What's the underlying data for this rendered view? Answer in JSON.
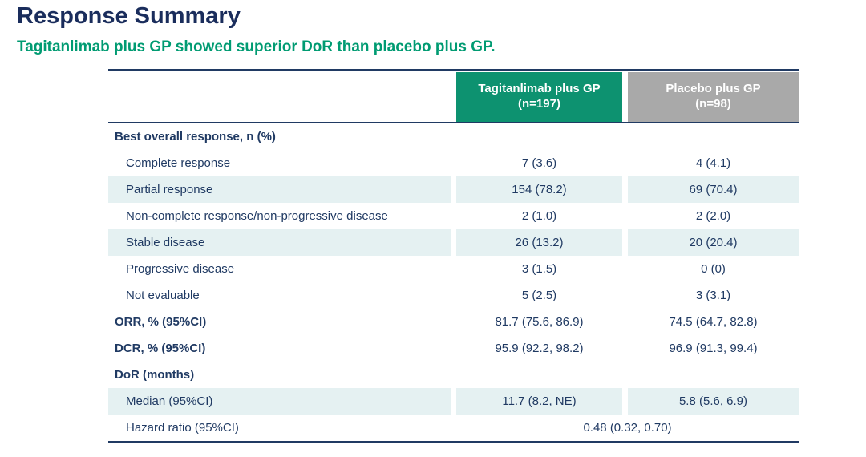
{
  "page": {
    "title": "Response Summary",
    "subtitle": "Tagitanlimab plus GP showed superior DoR than placebo plus GP."
  },
  "colors": {
    "title_navy": "#1a2d5c",
    "text_navy": "#203a63",
    "rule_navy": "#203a63",
    "accent_green": "#009b72",
    "header_green_bg": "#0d9270",
    "header_gray_bg": "#a9a9a9",
    "row_shade": "#e5f1f2",
    "header_text": "#ffffff"
  },
  "table": {
    "columns": [
      {
        "id": "label",
        "header_line1": "",
        "header_line2": ""
      },
      {
        "id": "tagitanlimab",
        "header_line1": "Tagitanlimab plus GP",
        "header_line2": "(n=197)"
      },
      {
        "id": "placebo",
        "header_line1": "Placebo plus GP",
        "header_line2": "(n=98)"
      }
    ],
    "rows": [
      {
        "label": "Best overall response, n (%)",
        "values": [
          "",
          ""
        ],
        "bold": true,
        "indent": 0,
        "shaded": false
      },
      {
        "label": "Complete response",
        "values": [
          "7 (3.6)",
          "4 (4.1)"
        ],
        "bold": false,
        "indent": 1,
        "shaded": false
      },
      {
        "label": "Partial response",
        "values": [
          "154 (78.2)",
          "69 (70.4)"
        ],
        "bold": false,
        "indent": 1,
        "shaded": true
      },
      {
        "label": "Non-complete response/non-progressive disease",
        "values": [
          "2 (1.0)",
          "2 (2.0)"
        ],
        "bold": false,
        "indent": 1,
        "shaded": false
      },
      {
        "label": "Stable disease",
        "values": [
          "26 (13.2)",
          "20 (20.4)"
        ],
        "bold": false,
        "indent": 1,
        "shaded": true
      },
      {
        "label": "Progressive disease",
        "values": [
          "3 (1.5)",
          "0 (0)"
        ],
        "bold": false,
        "indent": 1,
        "shaded": false
      },
      {
        "label": "Not evaluable",
        "values": [
          "5 (2.5)",
          "3 (3.1)"
        ],
        "bold": false,
        "indent": 1,
        "shaded": false
      },
      {
        "label": "ORR, % (95%CI)",
        "values": [
          "81.7 (75.6, 86.9)",
          "74.5 (64.7, 82.8)"
        ],
        "bold": true,
        "indent": 0,
        "shaded": false
      },
      {
        "label": "DCR, % (95%CI)",
        "values": [
          "95.9 (92.2, 98.2)",
          "96.9 (91.3, 99.4)"
        ],
        "bold": true,
        "indent": 0,
        "shaded": false
      },
      {
        "label": "DoR (months)",
        "values": [
          "",
          ""
        ],
        "bold": true,
        "indent": 0,
        "shaded": false
      },
      {
        "label": "Median (95%CI)",
        "values": [
          "11.7 (8.2, NE)",
          "5.8 (5.6, 6.9)"
        ],
        "bold": false,
        "indent": 1,
        "shaded": true
      },
      {
        "label": "Hazard ratio (95%CI)",
        "span_value": "0.48 (0.32, 0.70)",
        "bold": false,
        "indent": 1,
        "shaded": false
      }
    ]
  }
}
